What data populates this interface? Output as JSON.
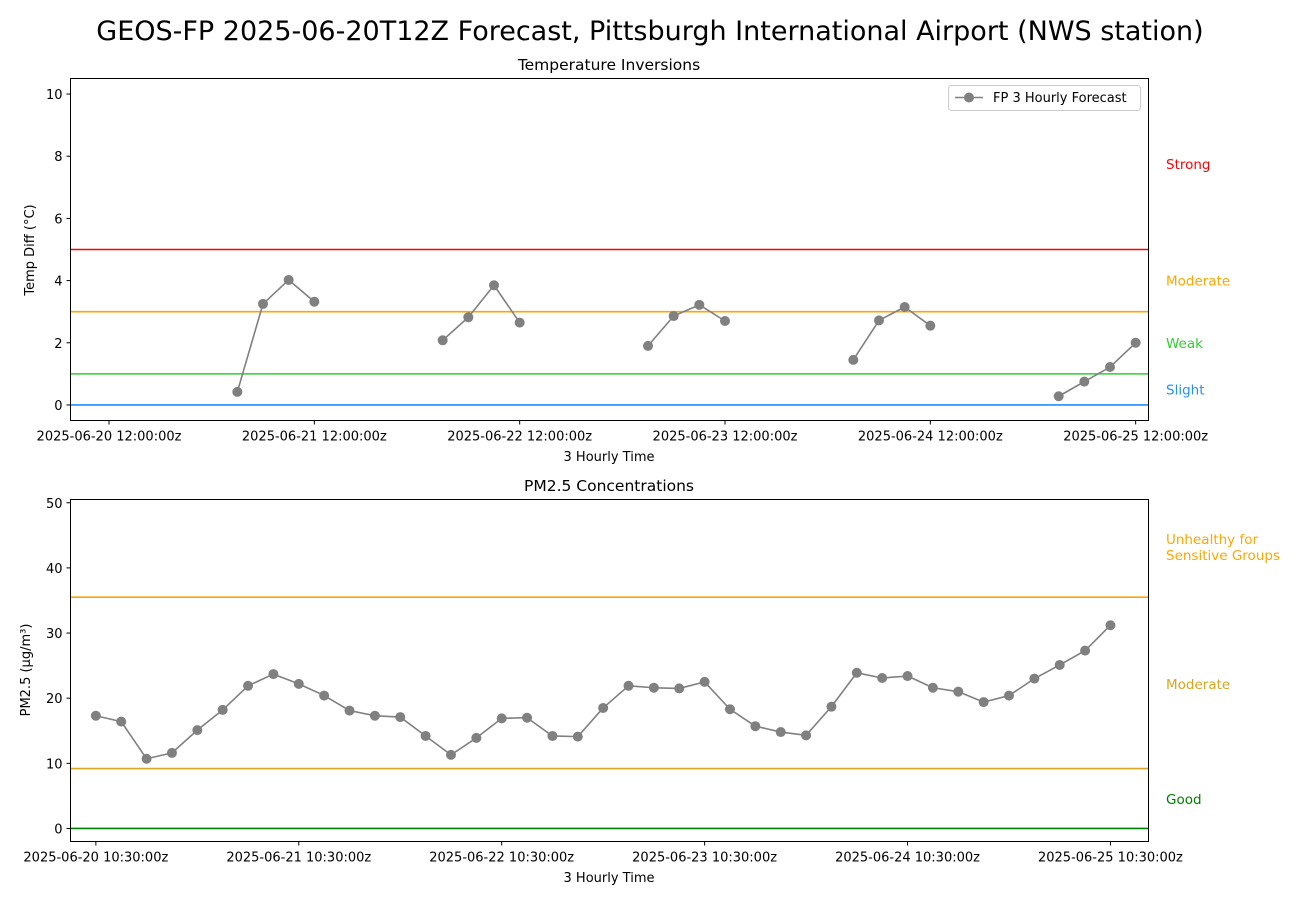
{
  "title": "GEOS-FP 2025-06-20T12Z Forecast, Pittsburgh International Airport (NWS station)",
  "chart_data": [
    {
      "type": "line",
      "title": "Temperature Inversions",
      "xlabel": "3 Hourly Time",
      "ylabel": "Temp Diff (°C)",
      "ylim": [
        -0.5,
        10.5
      ],
      "xlim": [
        -0.5,
        41.5
      ],
      "yticks": [
        0,
        2,
        4,
        6,
        8,
        10
      ],
      "xticks": [
        {
          "x": 1,
          "label": "2025-06-20 12:00:00z"
        },
        {
          "x": 9,
          "label": "2025-06-21 12:00:00z"
        },
        {
          "x": 17,
          "label": "2025-06-22 12:00:00z"
        },
        {
          "x": 25,
          "label": "2025-06-23 12:00:00z"
        },
        {
          "x": 33,
          "label": "2025-06-24 12:00:00z"
        },
        {
          "x": 41,
          "label": "2025-06-25 12:00:00z"
        }
      ],
      "legend": {
        "label": "FP 3 Hourly Forecast",
        "placement": "upper right"
      },
      "series": [
        {
          "name": "FP 3 Hourly Forecast",
          "color": "#808080",
          "points": [
            [
              6,
              0.42
            ],
            [
              7,
              3.25
            ],
            [
              8,
              4.02
            ],
            [
              9,
              3.32
            ]
          ],
          "segments": [
            [
              [
                6,
                0.42
              ],
              [
                7,
                3.25
              ],
              [
                8,
                4.02
              ],
              [
                9,
                3.32
              ]
            ],
            [
              [
                14,
                2.08
              ],
              [
                15,
                2.82
              ],
              [
                16,
                3.85
              ],
              [
                17,
                2.65
              ]
            ],
            [
              [
                22,
                1.9
              ],
              [
                23,
                2.86
              ],
              [
                24,
                3.22
              ],
              [
                25,
                2.7
              ]
            ],
            [
              [
                30,
                1.45
              ],
              [
                31,
                2.72
              ],
              [
                32,
                3.15
              ],
              [
                33,
                2.55
              ]
            ],
            [
              [
                38,
                0.28
              ],
              [
                39,
                0.75
              ],
              [
                40,
                1.22
              ],
              [
                41,
                2.0
              ]
            ]
          ]
        }
      ],
      "thresholds": [
        {
          "value": 0,
          "color": "#1f8fff",
          "label": "Slight",
          "label_y": 0.5
        },
        {
          "value": 1,
          "color": "#32cd32",
          "label": "Weak",
          "label_y": 2.0
        },
        {
          "value": 3,
          "color": "#ffa500",
          "label": "Moderate",
          "label_y": 4.0
        },
        {
          "value": 5,
          "color": "#ff0000",
          "label": "Strong",
          "label_y": 7.75
        }
      ]
    },
    {
      "type": "line",
      "title": "PM2.5 Concentrations",
      "xlabel": "3 Hourly Time",
      "ylabel": "PM2.5 (µg/m³)",
      "ylim": [
        -2,
        50.5
      ],
      "xlim": [
        -1,
        41.5
      ],
      "yticks": [
        0,
        10,
        20,
        30,
        40,
        50
      ],
      "xticks": [
        {
          "x": 0,
          "label": "2025-06-20 10:30:00z"
        },
        {
          "x": 8,
          "label": "2025-06-21 10:30:00z"
        },
        {
          "x": 16,
          "label": "2025-06-22 10:30:00z"
        },
        {
          "x": 24,
          "label": "2025-06-23 10:30:00z"
        },
        {
          "x": 32,
          "label": "2025-06-24 10:30:00z"
        },
        {
          "x": 40,
          "label": "2025-06-25 10:30:00z"
        }
      ],
      "series": [
        {
          "name": "FP 3 Hourly Forecast",
          "color": "#808080",
          "values": [
            17.3,
            16.4,
            10.7,
            11.6,
            15.1,
            18.2,
            21.9,
            23.7,
            22.2,
            20.4,
            18.1,
            17.3,
            17.1,
            14.2,
            11.3,
            13.9,
            16.9,
            17.0,
            14.2,
            14.1,
            18.5,
            21.9,
            21.6,
            21.5,
            22.5,
            18.3,
            15.7,
            14.8,
            14.3,
            18.7,
            23.9,
            23.1,
            23.4,
            21.6,
            21.0,
            19.4,
            20.4,
            23.0,
            25.1,
            27.3,
            31.2
          ]
        }
      ],
      "thresholds": [
        {
          "value": 0,
          "color": "#008000",
          "label": "Good",
          "label_y": 4.5
        },
        {
          "value": 9.2,
          "color": "#daa520",
          "label": "Moderate",
          "label_y": 22.2
        },
        {
          "value": 35.5,
          "color": "#ffa500",
          "label": "Unhealthy for\nSensitive Groups",
          "label_y": 43.2
        }
      ]
    }
  ]
}
